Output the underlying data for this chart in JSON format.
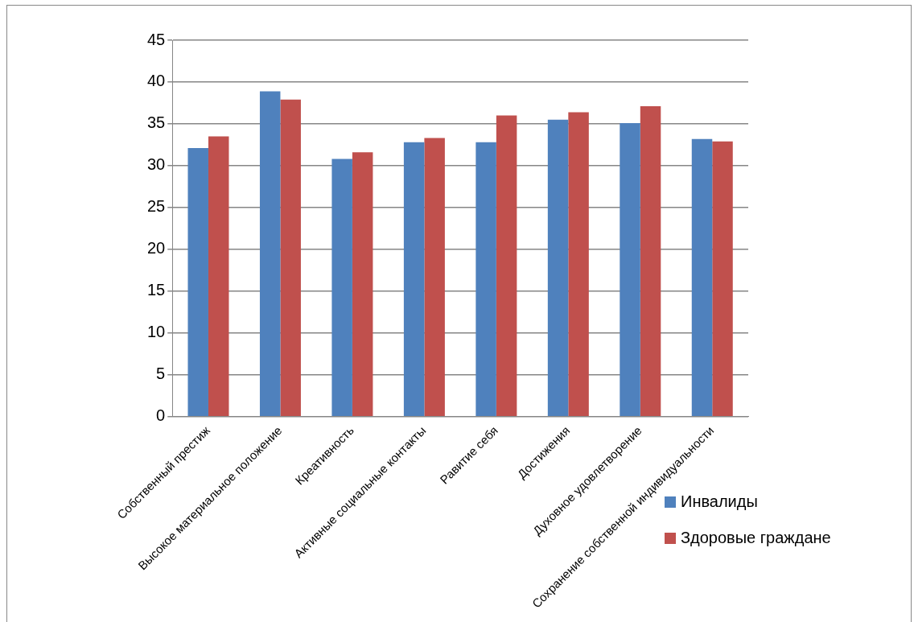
{
  "chart_data": {
    "type": "bar",
    "categories": [
      "Собственный престиж",
      "Высокое материальное положение",
      "Креативность",
      "Активные социальные контакты",
      "Равитие себя",
      "Достижения",
      "Духовное удовлетворение",
      "Сохранение собственной индивидуальности"
    ],
    "series": [
      {
        "name": "Инвалиды",
        "color": "#4f81bd",
        "values": [
          32.1,
          38.9,
          30.8,
          32.8,
          32.8,
          35.5,
          35.1,
          33.2
        ]
      },
      {
        "name": "Здоровые граждане",
        "color": "#c0504d",
        "values": [
          33.5,
          37.9,
          31.6,
          33.3,
          36.0,
          36.4,
          37.1,
          32.9
        ]
      }
    ],
    "ylim": [
      0,
      45
    ],
    "yticks": [
      0,
      5,
      10,
      15,
      20,
      25,
      30,
      35,
      40,
      45
    ],
    "grid": "y",
    "legend": "bottom right"
  }
}
